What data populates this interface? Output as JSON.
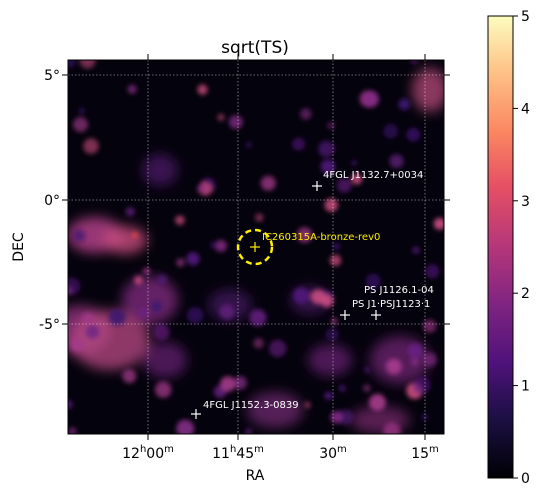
{
  "chart_data": {
    "type": "heatmap",
    "title": "sqrt(TS)",
    "xlabel": "RA",
    "ylabel": "DEC",
    "colormap": "magma",
    "grid": true,
    "x_ticks": [
      {
        "h": "12",
        "m": "00",
        "label_extra": ""
      },
      {
        "h": "11",
        "m": "45",
        "label_extra": ""
      },
      {
        "h": "",
        "m": "30",
        "label_extra": ""
      },
      {
        "h": "",
        "m": "15",
        "label_extra": ""
      }
    ],
    "y_ticks": [
      "5°",
      "0°",
      "-5°"
    ],
    "colorbar": {
      "range": [
        0,
        5
      ],
      "ticks": [
        "0",
        "1",
        "2",
        "3",
        "4",
        "5"
      ]
    },
    "sources": [
      {
        "name": "IC260315A-bronze-rev0",
        "kind": "target",
        "color": "#ffee00"
      },
      {
        "name": "4FGL J1132.7+0034",
        "kind": "4FGL",
        "color": "#ffffff"
      },
      {
        "name": "PS J1126.1-04",
        "kind": "PS",
        "color": "#ffffff"
      },
      {
        "name": "PS J1·PSJ1123·1",
        "kind": "PS",
        "color": "#ffffff"
      },
      {
        "name": "4FGL J1152.3-0839",
        "kind": "4FGL",
        "color": "#ffffff"
      }
    ]
  }
}
